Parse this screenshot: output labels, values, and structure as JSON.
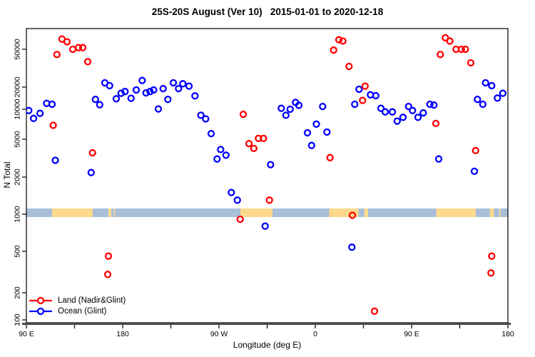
{
  "title": "25S-20S August (Ver 10)   2015-01-01 to 2020-12-18",
  "axes": {
    "x_label": "Longitude (deg E)",
    "y_label": "N Total"
  },
  "legend": {
    "items": [
      {
        "label": "Land (Nadir&Glint)",
        "color": "#ff0000"
      },
      {
        "label": "Ocean (Glint)",
        "color": "#0000ff"
      }
    ]
  },
  "chart_data": {
    "type": "scatter",
    "title": "25S-20S August (Ver 10)   2015-01-01 to 2020-12-18",
    "xlabel": "Longitude (deg E)",
    "ylabel": "N Total",
    "x_axis": {
      "range_deg": [
        90,
        540
      ],
      "tick_lons": [
        90,
        180,
        270,
        360,
        450,
        540
      ],
      "tick_labels": [
        "90 E",
        "180",
        "90 W",
        "0",
        "90 E",
        "180"
      ],
      "minor_tick_step_deg": 45
    },
    "y_axis": {
      "scale": "log10",
      "tick_values": [
        100,
        200,
        500,
        1000,
        2000,
        5000,
        10000,
        20000,
        50000
      ],
      "range": [
        80,
        75000
      ]
    },
    "series": [
      {
        "name": "Land (Nadir&Glint)",
        "color": "#ff0000",
        "marker": "open-circle",
        "points": [
          [
            123.3,
            64000
          ],
          [
            128.0,
            60000
          ],
          [
            118.5,
            44000
          ],
          [
            133.3,
            50000
          ],
          [
            138.7,
            52000
          ],
          [
            142.7,
            52000
          ],
          [
            147.3,
            37000
          ],
          [
            151.8,
            3600
          ],
          [
            115.1,
            6900
          ],
          [
            166.7,
            450
          ],
          [
            166.0,
            300
          ],
          [
            292.7,
            8900
          ],
          [
            298.0,
            4500
          ],
          [
            302.5,
            4000
          ],
          [
            306.9,
            5100
          ],
          [
            311.5,
            5100
          ],
          [
            317.1,
            1300
          ],
          [
            289.8,
            910
          ],
          [
            377.1,
            49000
          ],
          [
            382.0,
            63000
          ],
          [
            385.8,
            61000
          ],
          [
            391.5,
            33000
          ],
          [
            406.5,
            20500
          ],
          [
            404.2,
            13200
          ],
          [
            373.8,
            3200
          ],
          [
            394.7,
            980
          ],
          [
            415.3,
            125
          ],
          [
            472.7,
            7200
          ],
          [
            476.9,
            44000
          ],
          [
            481.5,
            66000
          ],
          [
            485.8,
            61000
          ],
          [
            491.5,
            50000
          ],
          [
            496.5,
            50000
          ],
          [
            500.2,
            50000
          ],
          [
            505.3,
            36000
          ],
          [
            509.8,
            3800
          ],
          [
            524.9,
            450
          ],
          [
            524.2,
            310
          ]
        ]
      },
      {
        "name": "Ocean (Glint)",
        "color": "#0000ff",
        "marker": "open-circle",
        "points": [
          [
            92.2,
            9700
          ],
          [
            96.7,
            8100
          ],
          [
            102.7,
            9100
          ],
          [
            108.9,
            12000
          ],
          [
            114.0,
            11700
          ],
          [
            117.1,
            3000
          ],
          [
            154.5,
            13600
          ],
          [
            158.5,
            11500
          ],
          [
            163.3,
            22200
          ],
          [
            167.8,
            20700
          ],
          [
            150.5,
            2230
          ],
          [
            174.0,
            13900
          ],
          [
            178.5,
            16500
          ],
          [
            182.2,
            17400
          ],
          [
            187.8,
            14100
          ],
          [
            192.7,
            18300
          ],
          [
            198.2,
            23500
          ],
          [
            201.8,
            16700
          ],
          [
            205.5,
            17400
          ],
          [
            208.9,
            18300
          ],
          [
            213.3,
            10100
          ],
          [
            217.8,
            19100
          ],
          [
            222.2,
            13600
          ],
          [
            227.3,
            22200
          ],
          [
            232.2,
            19100
          ],
          [
            236.2,
            21700
          ],
          [
            242.0,
            20500
          ],
          [
            247.5,
            15200
          ],
          [
            253.1,
            8700
          ],
          [
            257.5,
            8000
          ],
          [
            262.7,
            5700
          ],
          [
            268.2,
            3100
          ],
          [
            271.5,
            3900
          ],
          [
            276.5,
            3400
          ],
          [
            281.5,
            1500
          ],
          [
            287.1,
            1300
          ],
          [
            313.1,
            800
          ],
          [
            318.2,
            2700
          ],
          [
            328.2,
            10300
          ],
          [
            332.5,
            8700
          ],
          [
            336.5,
            10000
          ],
          [
            341.5,
            12400
          ],
          [
            344.7,
            11300
          ],
          [
            352.7,
            5800
          ],
          [
            356.5,
            4300
          ],
          [
            361.0,
            7100
          ],
          [
            366.9,
            10900
          ],
          [
            370.9,
            5900
          ],
          [
            394.2,
            540
          ],
          [
            396.9,
            11700
          ],
          [
            400.9,
            18700
          ],
          [
            411.5,
            15700
          ],
          [
            416.5,
            15300
          ],
          [
            421.3,
            10300
          ],
          [
            425.3,
            9400
          ],
          [
            432.0,
            9400
          ],
          [
            436.5,
            7600
          ],
          [
            442.0,
            8300
          ],
          [
            447.1,
            10900
          ],
          [
            450.9,
            9700
          ],
          [
            456.0,
            8300
          ],
          [
            460.9,
            9200
          ],
          [
            467.1,
            11700
          ],
          [
            470.9,
            11400
          ],
          [
            475.3,
            3100
          ],
          [
            508.7,
            2300
          ],
          [
            511.5,
            13600
          ],
          [
            516.5,
            11700
          ],
          [
            519.1,
            22200
          ],
          [
            524.9,
            20700
          ],
          [
            530.2,
            14200
          ],
          [
            535.3,
            16500
          ]
        ]
      }
    ],
    "map_strip": {
      "ocean_color": "#a8bed9",
      "land_color": "#fcd98b",
      "n_range": [
        950,
        1250
      ],
      "land_segments_lon": [
        [
          114,
          152
        ],
        [
          166.6,
          169.4
        ],
        [
          171.8,
          172.9
        ],
        [
          290,
          320
        ],
        [
          373,
          400.5
        ],
        [
          405.8,
          409.3
        ],
        [
          473,
          510
        ],
        [
          523.2,
          526.8
        ],
        [
          531.8,
          532.9
        ]
      ]
    }
  }
}
